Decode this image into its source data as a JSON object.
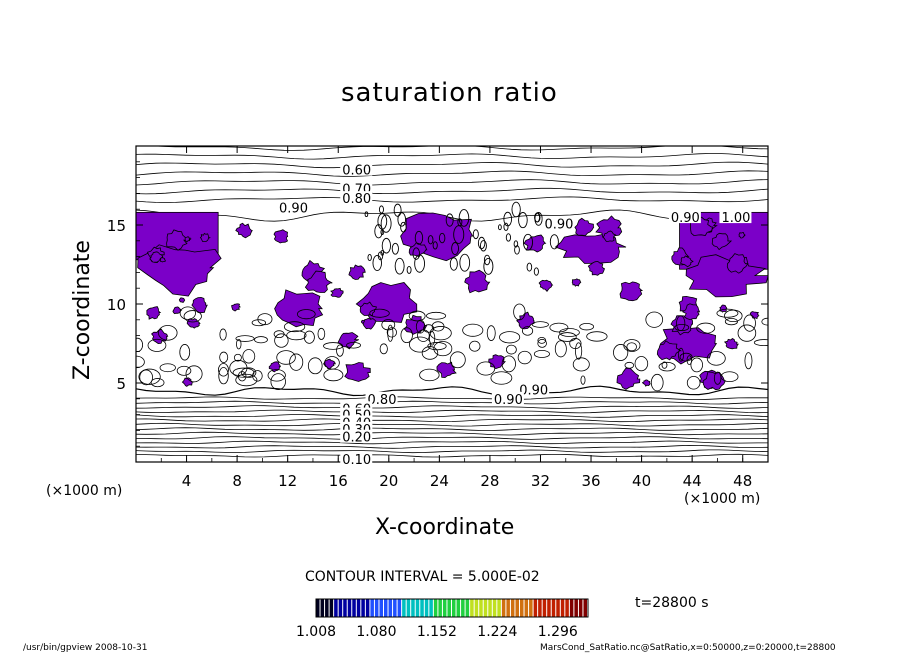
{
  "chart_data": {
    "type": "heatmap",
    "title": "saturation ratio",
    "xlabel": "X-coordinate",
    "ylabel": "Z-coordinate",
    "x_unit_left": "(×1000 m)",
    "x_unit_right": "(×1000 m)",
    "xlim": [
      0,
      50
    ],
    "ylim": [
      0,
      20
    ],
    "x_ticks": [
      "4",
      "8",
      "12",
      "16",
      "20",
      "24",
      "28",
      "32",
      "36",
      "40",
      "44",
      "48"
    ],
    "y_ticks": [
      "5",
      "10",
      "15"
    ],
    "contour_labels": [
      "0.60",
      "0.70",
      "0.80",
      "0.90",
      "0.90",
      "1.00",
      "0.90",
      "0.90",
      "0.80",
      "0.90",
      "0.60",
      "0.50",
      "0.40",
      "0.30",
      "0.20",
      "0.10"
    ],
    "contour_interval": "CONTOUR INTERVAL = 5.000E-02",
    "colorbar": {
      "ticks": [
        "1.008",
        "1.080",
        "1.152",
        "1.224",
        "1.296"
      ],
      "range": [
        1.008,
        1.332
      ]
    },
    "time_label": "t=28800 s",
    "fill_color": "#7b00c8",
    "supersaturated_regions": [
      {
        "x": [
          0,
          6.5
        ],
        "z": [
          11.8,
          15.8
        ]
      },
      {
        "x": [
          43,
          50
        ],
        "z": [
          12,
          15.8
        ]
      },
      {
        "x": [
          11,
          15
        ],
        "z": [
          9,
          10.8
        ]
      },
      {
        "x": [
          17.5,
          22
        ],
        "z": [
          9,
          11.5
        ]
      },
      {
        "x": [
          21,
          29
        ],
        "z": [
          12,
          16
        ]
      },
      {
        "x": [
          33,
          39
        ],
        "z": [
          13,
          14.5
        ]
      }
    ]
  },
  "footer": {
    "left": "/usr/bin/gpview   2008-10-31",
    "right": "MarsCond_SatRatio.nc@SatRatio,x=0:50000,z=0:20000,t=28800"
  },
  "colors": {
    "supersaturation": "#7b00c8",
    "line": "#000000",
    "background": "#ffffff"
  }
}
